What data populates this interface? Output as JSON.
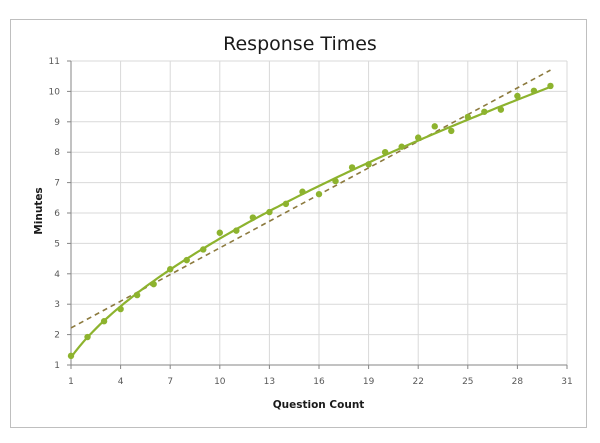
{
  "chart_data": {
    "type": "scatter",
    "title": "Response Times",
    "xlabel": "Question Count",
    "ylabel": "Minutes",
    "xlim": [
      1,
      31
    ],
    "ylim": [
      1,
      11
    ],
    "x_ticks": [
      1,
      4,
      7,
      10,
      13,
      16,
      19,
      22,
      25,
      28,
      31
    ],
    "y_ticks": [
      1,
      2,
      3,
      4,
      5,
      6,
      7,
      8,
      9,
      10,
      11
    ],
    "grid": true,
    "legend": "none",
    "series": [
      {
        "name": "Response Times",
        "type": "scatter",
        "color": "#8db32e",
        "x": [
          1,
          2,
          3,
          4,
          5,
          6,
          7,
          8,
          9,
          10,
          11,
          12,
          13,
          14,
          15,
          16,
          17,
          18,
          19,
          20,
          21,
          22,
          23,
          24,
          25,
          26,
          27,
          28,
          29,
          30
        ],
        "values": [
          1.3,
          1.92,
          2.44,
          2.84,
          3.3,
          3.66,
          4.15,
          4.45,
          4.8,
          5.35,
          5.42,
          5.85,
          6.03,
          6.3,
          6.7,
          6.62,
          7.05,
          7.5,
          7.6,
          8.0,
          8.18,
          8.48,
          8.85,
          8.7,
          9.16,
          9.33,
          9.4,
          9.85,
          10.02,
          10.18
        ]
      },
      {
        "name": "Power trendline",
        "type": "line",
        "style": "solid",
        "color": "#8db32e"
      },
      {
        "name": "Linear trendline",
        "type": "line",
        "style": "dashed",
        "color": "#8c7a3e",
        "x": [
          1,
          30
        ],
        "values": [
          2.22,
          10.7
        ]
      }
    ]
  }
}
